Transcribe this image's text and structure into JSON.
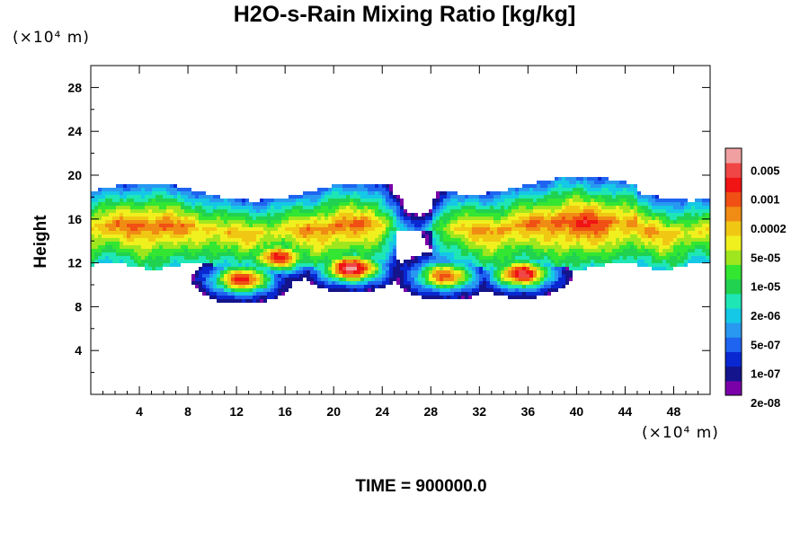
{
  "chart_data": {
    "type": "heatmap",
    "title": "H2O-s-Rain Mixing Ratio [kg/kg]",
    "ylabel": "Height",
    "xlabel": "",
    "x_unit": "(×10⁴ m)",
    "y_unit": "(×10⁴ m)",
    "footer": "TIME = 900000.0",
    "xlim": [
      0,
      51
    ],
    "ylim": [
      0,
      30
    ],
    "x_ticks": [
      4,
      8,
      12,
      16,
      20,
      24,
      28,
      32,
      36,
      40,
      44,
      48
    ],
    "y_ticks": [
      4,
      8,
      12,
      16,
      20,
      24,
      28
    ],
    "grid": false,
    "colorbar": {
      "placement": "right",
      "labels": [
        "0.005",
        "0.001",
        "0.0002",
        "5e-05",
        "1e-05",
        "2e-06",
        "5e-07",
        "1e-07",
        "2e-08"
      ],
      "colors_bottom_to_top": [
        "#7a00a8",
        "#14148c",
        "#0a28d2",
        "#1e64f0",
        "#2898f0",
        "#14c8e6",
        "#1ee6b4",
        "#20d250",
        "#32e632",
        "#a0e61e",
        "#f0f01e",
        "#f0c814",
        "#f08c14",
        "#f05014",
        "#f01414",
        "#f04646",
        "#f0a0a0"
      ]
    },
    "field": {
      "level_scale": "log10 mixing ratio, levels 0..16 bottom to top of colorbar",
      "layer_base_y": 12,
      "layer_top_y": 18.5,
      "cores": [
        {
          "x": 15.5,
          "y": 12.5,
          "level": 14
        },
        {
          "x": 21.5,
          "y": 11.5,
          "level": 16
        },
        {
          "x": 12.5,
          "y": 10.5,
          "level": 14
        },
        {
          "x": 35.5,
          "y": 11,
          "level": 15
        },
        {
          "x": 31.5,
          "y": 14.5,
          "level": 11
        },
        {
          "x": 29.2,
          "y": 10.8,
          "level": 13
        }
      ]
    }
  }
}
